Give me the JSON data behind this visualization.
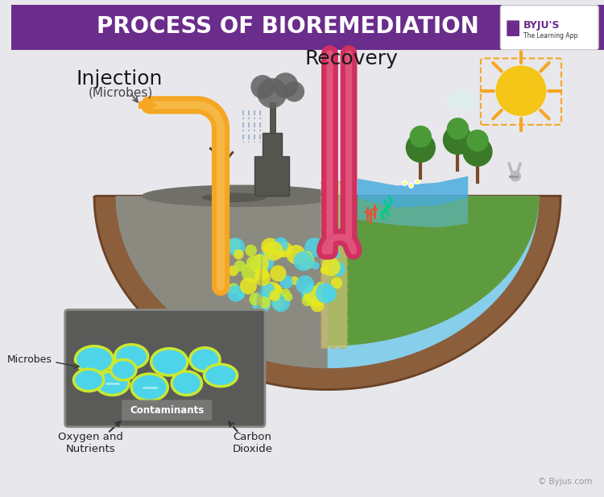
{
  "title": "PROCESS OF BIOREMEDIATION",
  "title_bg": "#6B2D8B",
  "title_color": "#FFFFFF",
  "bg_color": "#E8E8EC",
  "injection_label": "Injection",
  "injection_sub": "(Microbes)",
  "recovery_label": "Recovery",
  "microbes_label": "Microbes",
  "contaminants_label": "Contaminants",
  "oxygen_label": "Oxygen and\nNutrients",
  "co2_label": "Carbon\nDioxide",
  "copyright": "© Byjus.com",
  "orange_color": "#F5A623",
  "orange_inner": "#F8C860",
  "red_tube_color": "#D03060",
  "red_tube_highlight": "#F07090",
  "soil_color": "#8B5E3C",
  "ground_dark": "#6B4226",
  "contaminated_ground": "#888880",
  "clean_ground_color": "#5E9B3F",
  "water_color": "#4AADDF",
  "sky_clean": "#87CEEB",
  "inset_bg": "#5A5A58",
  "inset_edge": "#888884",
  "microbe_cyan": "#4DD4E8",
  "microbe_outline": "#C8E832",
  "sun_color": "#F5C518",
  "sun_ray_color": "#F5A623",
  "sep_color": "#D4C87A",
  "sep_edge": "#B8B055",
  "connector_color": "#888884",
  "byju_purple": "#6B2D8B",
  "byju_text_color": "#333333",
  "smoke_color": "#606060",
  "tree_trunk": "#7B4A2A",
  "tree_dark": "#3A7A28",
  "tree_light": "#4A9A38",
  "factory_color": "#555550",
  "dead_tree": "#5A3A20",
  "rain_color": "#7799BB",
  "puddle_color": "#505048",
  "rabbit_color": "#BBBBBB",
  "flower_color": "#FFFFFF",
  "flower_center": "#FFFF00",
  "coral_color": "#E05530",
  "seaweed_color": "#00CC88"
}
